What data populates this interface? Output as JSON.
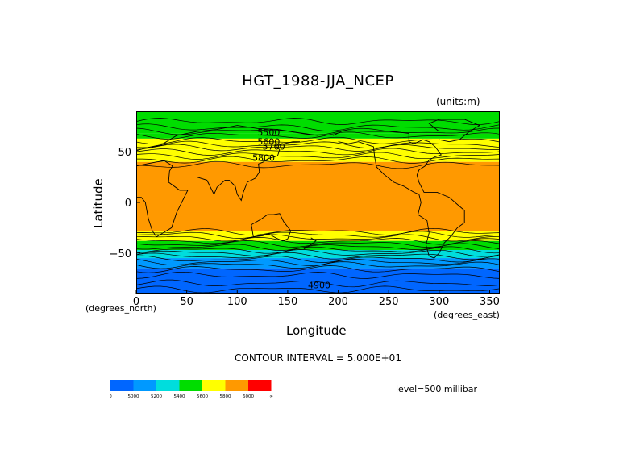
{
  "figure": {
    "title": "HGT_1988-JJA_NCEP",
    "units": "(units:m)",
    "xlabel": "Longitude",
    "ylabel": "Latitude",
    "x_axis_note": "(degrees_east)",
    "y_axis_note": "(degrees_north)",
    "x_ticks": [
      "0",
      "50",
      "100",
      "150",
      "200",
      "250",
      "300",
      "350"
    ],
    "y_ticks": [
      "50",
      "0",
      "−50"
    ],
    "contour_interval": "CONTOUR INTERVAL = 5.000E+01",
    "level": "level=500 millibar",
    "contour_labels": [
      "5500",
      "5600",
      "5700",
      "5800",
      "4900"
    ]
  },
  "map": {
    "x_range": [
      0,
      360
    ],
    "y_range": [
      -90,
      90
    ],
    "bands": [
      {
        "from_lat": 90,
        "to_lat": 68,
        "color": "#00dd00"
      },
      {
        "from_lat": 68,
        "to_lat": 63,
        "color": "#00dd00"
      },
      {
        "from_lat": 63,
        "to_lat": 52,
        "color": "#ffff00"
      },
      {
        "from_lat": 52,
        "to_lat": 40,
        "color": "#ffff00"
      },
      {
        "from_lat": 40,
        "to_lat": -28,
        "color": "#ff9900"
      },
      {
        "from_lat": -28,
        "to_lat": -38,
        "color": "#ffff00"
      },
      {
        "from_lat": -38,
        "to_lat": -47,
        "color": "#00dd00"
      },
      {
        "from_lat": -47,
        "to_lat": -55,
        "color": "#00dddd"
      },
      {
        "from_lat": -55,
        "to_lat": -65,
        "color": "#0099ff"
      },
      {
        "from_lat": -65,
        "to_lat": -90,
        "color": "#0066ff"
      }
    ]
  },
  "colorbar": {
    "colors": [
      "#0066ff",
      "#0099ff",
      "#00dddd",
      "#00dd00",
      "#ffff00",
      "#ff9900",
      "#ff0000"
    ],
    "labels": [
      "0",
      "5000",
      "5200",
      "5400",
      "5600",
      "5800",
      "6000",
      "∞"
    ]
  }
}
